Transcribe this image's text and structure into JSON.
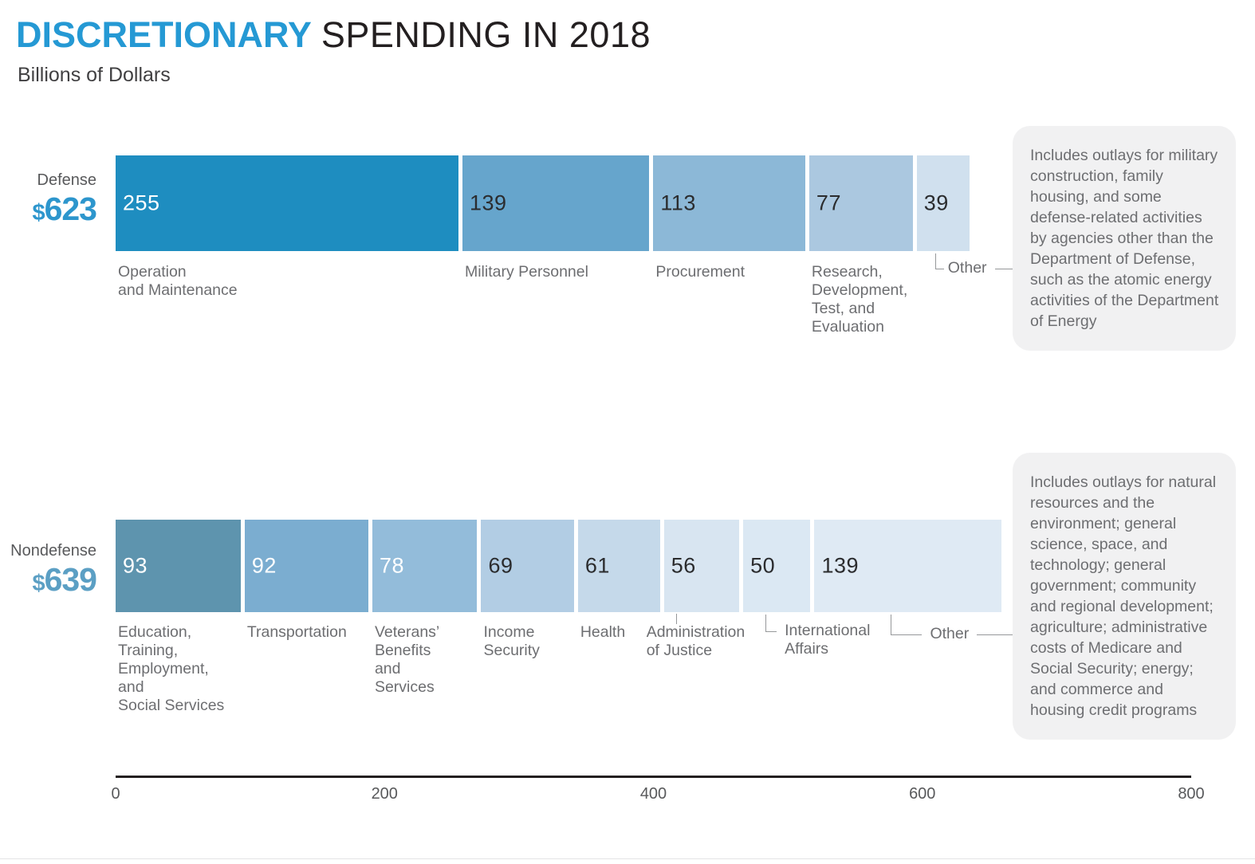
{
  "header": {
    "title_accent": "DISCRETIONARY",
    "title_rest": "SPENDING IN 2018",
    "subtitle": "Billions of Dollars"
  },
  "colors": {
    "accent_blue": "#2599d4",
    "axis_line": "#231f20",
    "label_gray": "#6d6e71",
    "connector_gray": "#96989a",
    "note_background": "#f1f1f2"
  },
  "chart_data": {
    "type": "bar",
    "variant": "horizontal-stacked",
    "title": "DISCRETIONARY SPENDING IN 2018",
    "units": "Billions of Dollars",
    "x_axis": {
      "min": 0,
      "max": 800,
      "ticks": [
        0,
        200,
        400,
        600,
        800
      ]
    },
    "groups": [
      {
        "name": "Defense",
        "currency": "$",
        "total": 623,
        "total_color": "#2d96cd",
        "segments": [
          {
            "label": "Operation\nand Maintenance",
            "value": 255,
            "color": "#1e8dc0",
            "value_text_color": "#ffffff"
          },
          {
            "label": "Military Personnel",
            "value": 139,
            "color": "#66a5cc",
            "value_text_color": "#2b2c2e"
          },
          {
            "label": "Procurement",
            "value": 113,
            "color": "#8cb8d7",
            "value_text_color": "#2b2c2e"
          },
          {
            "label": "Research,\nDevelopment,\nTest, and\nEvaluation",
            "value": 77,
            "color": "#abc8e0",
            "value_text_color": "#2b2c2e"
          },
          {
            "label": "Other",
            "value": 39,
            "color": "#d0e0ee",
            "value_text_color": "#2b2c2e",
            "callout": "elbow-dash"
          }
        ],
        "note": "Includes outlays for military construction, family housing, and some defense-related activities by agencies other than the Department of Defense, such as the atomic energy activities of the Department of Energy"
      },
      {
        "name": "Nondefense",
        "currency": "$",
        "total": 639,
        "total_color": "#5b9fc4",
        "segments": [
          {
            "label": "Education,\nTraining,\nEmployment,\nand\nSocial Services",
            "value": 93,
            "color": "#5e94ae",
            "value_text_color": "#ffffff"
          },
          {
            "label": "Transportation",
            "value": 92,
            "color": "#7badd0",
            "value_text_color": "#ffffff"
          },
          {
            "label": "Veterans’\nBenefits\nand\nServices",
            "value": 78,
            "color": "#93bcda",
            "value_text_color": "#ffffff"
          },
          {
            "label": "Income\nSecurity",
            "value": 69,
            "color": "#b2cde4",
            "value_text_color": "#2b2c2e"
          },
          {
            "label": "Health",
            "value": 61,
            "color": "#c5d9ea",
            "value_text_color": "#2b2c2e"
          },
          {
            "label": "Administration\nof Justice",
            "value": 56,
            "color": "#d8e5f1",
            "value_text_color": "#2b2c2e",
            "callout": "tick"
          },
          {
            "label": "International\nAffairs",
            "value": 50,
            "color": "#dbe8f3",
            "value_text_color": "#2b2c2e",
            "callout": "elbow"
          },
          {
            "label": "Other",
            "value": 139,
            "color": "#dfeaf4",
            "value_text_color": "#2b2c2e",
            "callout": "elbow-dash"
          }
        ],
        "note": "Includes outlays for natural resources and the environment; general science, space, and technology; general government; community and regional development; agriculture; administrative costs of Medicare and Social Security; energy; and commerce and housing credit programs"
      }
    ]
  }
}
